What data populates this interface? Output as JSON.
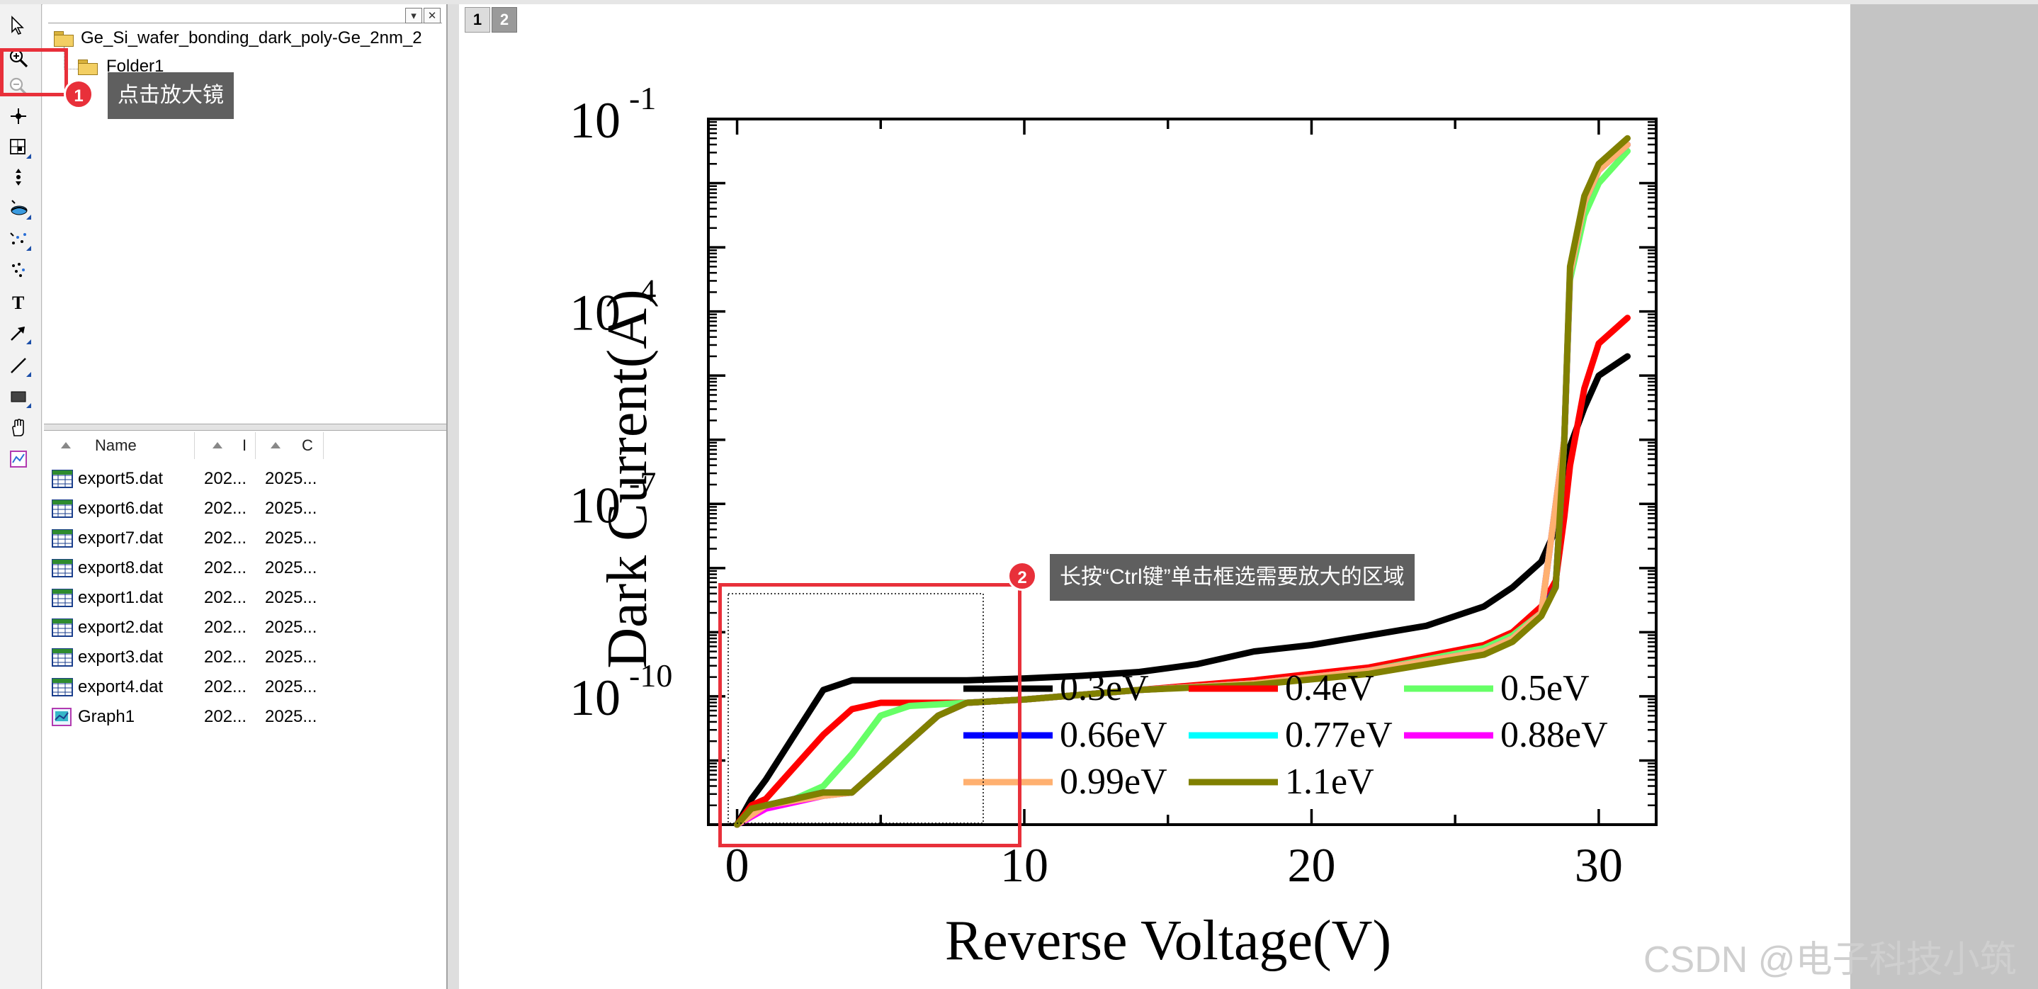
{
  "explorer": {
    "project_name": "Ge_Si_wafer_bonding_dark_poly-Ge_2nm_2",
    "folder_name": "Folder1",
    "columns": [
      "Name",
      "I",
      "C"
    ],
    "files": [
      {
        "name": "export5.dat",
        "c2": "202...",
        "c3": "2025...",
        "icon": "worksheet-icon"
      },
      {
        "name": "export6.dat",
        "c2": "202...",
        "c3": "2025...",
        "icon": "worksheet-icon"
      },
      {
        "name": "export7.dat",
        "c2": "202...",
        "c3": "2025...",
        "icon": "worksheet-icon"
      },
      {
        "name": "export8.dat",
        "c2": "202...",
        "c3": "2025...",
        "icon": "worksheet-icon"
      },
      {
        "name": "export1.dat",
        "c2": "202...",
        "c3": "2025...",
        "icon": "worksheet-icon"
      },
      {
        "name": "export2.dat",
        "c2": "202...",
        "c3": "2025...",
        "icon": "worksheet-icon"
      },
      {
        "name": "export3.dat",
        "c2": "202...",
        "c3": "2025...",
        "icon": "worksheet-icon"
      },
      {
        "name": "export4.dat",
        "c2": "202...",
        "c3": "2025...",
        "icon": "worksheet-icon"
      },
      {
        "name": "Graph1",
        "c2": "202...",
        "c3": "2025...",
        "icon": "graph-icon"
      }
    ]
  },
  "toolbar": {
    "tools": [
      "pointer-icon",
      "zoom-in-icon",
      "zoom-out-icon",
      "data-reader-icon",
      "screen-reader-icon",
      "data-selector-icon",
      "draw-data-icon",
      "mask-icon",
      "scatter-region-icon",
      "text-tool-icon",
      "arrow-tool-icon",
      "line-tool-icon",
      "rectangle-tool-icon",
      "pan-hand-icon",
      "insert-graph-icon"
    ]
  },
  "layer_tabs": [
    "1",
    "2"
  ],
  "annotations": {
    "step1_number": "1",
    "step1_text": "点击放大镜",
    "step2_number": "2",
    "step2_text": "长按“Ctrl键”单击框选需要放大的区域",
    "accent": "#e8303a"
  },
  "watermark": "CSDN @电子科技小筑",
  "chart_data": {
    "type": "line",
    "xlabel": "Reverse Voltage(V)",
    "ylabel": "Dark Current(A)",
    "yscale": "log",
    "xlim": [
      -1,
      32
    ],
    "ylim_exponent": [
      -12,
      -1
    ],
    "xticks": [
      0,
      10,
      20,
      30
    ],
    "yticks": [
      {
        "base": "10",
        "exp": "-1",
        "value": -1
      },
      {
        "base": "10",
        "exp": "-4",
        "value": -4
      },
      {
        "base": "10",
        "exp": "-7",
        "value": -7
      },
      {
        "base": "10",
        "exp": "-10",
        "value": -10
      }
    ],
    "legend_position": "lower-center",
    "series": [
      {
        "name": "0.3eV",
        "color": "#000000",
        "x": [
          0,
          0.5,
          1,
          2,
          3,
          4,
          6,
          8,
          10,
          12,
          14,
          16,
          18,
          20,
          22,
          24,
          26,
          27,
          28,
          28.5,
          28.8,
          29,
          29.5,
          30,
          31
        ],
        "logy": [
          -12,
          -11.6,
          -11.3,
          -10.6,
          -9.9,
          -9.75,
          -9.75,
          -9.75,
          -9.72,
          -9.68,
          -9.62,
          -9.5,
          -9.3,
          -9.2,
          -9.05,
          -8.9,
          -8.6,
          -8.3,
          -7.9,
          -7.4,
          -6.8,
          -6.1,
          -5.5,
          -5.0,
          -4.7
        ]
      },
      {
        "name": "0.4eV",
        "color": "#ff0000",
        "x": [
          0,
          0.5,
          1,
          2,
          3,
          4,
          5,
          6,
          8,
          10,
          14,
          18,
          22,
          26,
          27,
          28,
          28.5,
          28.8,
          29,
          29.5,
          30,
          31
        ],
        "logy": [
          -12,
          -11.7,
          -11.6,
          -11.1,
          -10.6,
          -10.2,
          -10.1,
          -10.1,
          -10.1,
          -10.05,
          -9.9,
          -9.75,
          -9.55,
          -9.2,
          -9.0,
          -8.6,
          -8.2,
          -7.2,
          -6.4,
          -5.2,
          -4.5,
          -4.1
        ]
      },
      {
        "name": "0.5eV",
        "color": "#66ff66",
        "x": [
          0,
          0.5,
          1,
          2,
          3,
          4,
          5,
          6,
          8,
          10,
          14,
          18,
          22,
          26,
          27,
          28,
          28.5,
          28.8,
          29,
          29.5,
          30,
          31
        ],
        "logy": [
          -12,
          -11.8,
          -11.7,
          -11.6,
          -11.4,
          -10.9,
          -10.3,
          -10.15,
          -10.1,
          -10.05,
          -9.9,
          -9.8,
          -9.6,
          -9.25,
          -9.05,
          -8.7,
          -8.3,
          -6.0,
          -3.5,
          -2.5,
          -2.0,
          -1.5
        ]
      },
      {
        "name": "0.66eV",
        "color": "#0000ff",
        "x": [
          0,
          0.5,
          1,
          2,
          3,
          4,
          5,
          6,
          7,
          8,
          10,
          14,
          18,
          22,
          26,
          27,
          28,
          28.5,
          28.8,
          29,
          29.5,
          30,
          31
        ],
        "logy": [
          -12,
          -11.8,
          -11.7,
          -11.6,
          -11.5,
          -11.5,
          -11.1,
          -10.7,
          -10.3,
          -10.1,
          -10.05,
          -9.9,
          -9.8,
          -9.6,
          -9.3,
          -9.1,
          -8.7,
          -8.3,
          -6.0,
          -3.4,
          -2.3,
          -1.8,
          -1.4
        ]
      },
      {
        "name": "0.77eV",
        "color": "#00ffff",
        "x": [
          0,
          1,
          3,
          4,
          5,
          6,
          7,
          8,
          10,
          14,
          18,
          22,
          26,
          27,
          28,
          28.8,
          29,
          29.5,
          30,
          31
        ],
        "logy": [
          -12,
          -11.7,
          -11.55,
          -11.5,
          -11.1,
          -10.7,
          -10.3,
          -10.1,
          -10.05,
          -9.9,
          -9.8,
          -9.6,
          -9.3,
          -9.1,
          -8.7,
          -6.0,
          -3.4,
          -2.3,
          -1.8,
          -1.4
        ]
      },
      {
        "name": "0.88eV",
        "color": "#ff00ff",
        "x": [
          0,
          1,
          3,
          4,
          5,
          6,
          7,
          8,
          10,
          14,
          18,
          22,
          26,
          27,
          28,
          28.8,
          29,
          29.5,
          30,
          31
        ],
        "logy": [
          -12,
          -11.75,
          -11.55,
          -11.5,
          -11.1,
          -10.7,
          -10.3,
          -10.1,
          -10.05,
          -9.9,
          -9.8,
          -9.6,
          -9.3,
          -9.1,
          -8.7,
          -6.0,
          -3.4,
          -2.3,
          -1.8,
          -1.4
        ]
      },
      {
        "name": "0.99eV",
        "color": "#ffb070",
        "x": [
          0,
          1,
          3,
          4,
          5,
          6,
          7,
          8,
          10,
          14,
          18,
          22,
          26,
          27,
          28,
          28.8,
          29,
          29.5,
          30,
          31
        ],
        "logy": [
          -12,
          -11.7,
          -11.55,
          -11.5,
          -11.1,
          -10.7,
          -10.3,
          -10.1,
          -10.05,
          -9.9,
          -9.8,
          -9.6,
          -9.3,
          -9.1,
          -8.7,
          -6.0,
          -3.4,
          -2.3,
          -1.8,
          -1.4
        ]
      },
      {
        "name": "1.1eV",
        "color": "#808000",
        "x": [
          0,
          0.5,
          1,
          2,
          3,
          4,
          5,
          6,
          7,
          8,
          10,
          14,
          18,
          22,
          26,
          27,
          28,
          28.5,
          28.8,
          29,
          29.5,
          30,
          31
        ],
        "logy": [
          -12,
          -11.75,
          -11.7,
          -11.6,
          -11.5,
          -11.5,
          -11.1,
          -10.7,
          -10.3,
          -10.1,
          -10.05,
          -9.9,
          -9.82,
          -9.65,
          -9.35,
          -9.15,
          -8.75,
          -8.3,
          -6.0,
          -3.3,
          -2.2,
          -1.7,
          -1.3
        ]
      }
    ]
  }
}
